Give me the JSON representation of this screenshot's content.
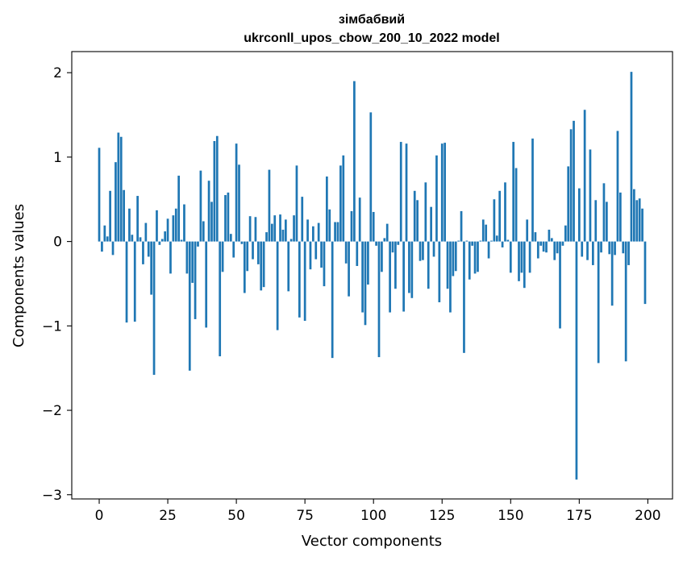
{
  "chart_data": {
    "type": "bar",
    "title": "зімбабвий",
    "subtitle": "ukrconll_upos_cbow_200_10_2022 model",
    "xlabel": "Vector components",
    "ylabel": "Components values",
    "xlim": [
      -10,
      209
    ],
    "ylim": [
      -3.05,
      2.25
    ],
    "xticks": [
      0,
      25,
      50,
      75,
      100,
      125,
      150,
      175,
      200
    ],
    "xtick_labels": [
      "0",
      "25",
      "50",
      "75",
      "100",
      "125",
      "150",
      "175",
      "200"
    ],
    "yticks": [
      -3,
      -2,
      -1,
      0,
      1,
      2
    ],
    "ytick_labels": [
      "−3",
      "−2",
      "−1",
      "0",
      "1",
      "2"
    ],
    "grid": false,
    "legend": "none",
    "bar_color": "#1f77b4",
    "x": [
      0,
      1,
      2,
      3,
      4,
      5,
      6,
      7,
      8,
      9,
      10,
      11,
      12,
      13,
      14,
      15,
      16,
      17,
      18,
      19,
      20,
      21,
      22,
      23,
      24,
      25,
      26,
      27,
      28,
      29,
      30,
      31,
      32,
      33,
      34,
      35,
      36,
      37,
      38,
      39,
      40,
      41,
      42,
      43,
      44,
      45,
      46,
      47,
      48,
      49,
      50,
      51,
      52,
      53,
      54,
      55,
      56,
      57,
      58,
      59,
      60,
      61,
      62,
      63,
      64,
      65,
      66,
      67,
      68,
      69,
      70,
      71,
      72,
      73,
      74,
      75,
      76,
      77,
      78,
      79,
      80,
      81,
      82,
      83,
      84,
      85,
      86,
      87,
      88,
      89,
      90,
      91,
      92,
      93,
      94,
      95,
      96,
      97,
      98,
      99,
      100,
      101,
      102,
      103,
      104,
      105,
      106,
      107,
      108,
      109,
      110,
      111,
      112,
      113,
      114,
      115,
      116,
      117,
      118,
      119,
      120,
      121,
      122,
      123,
      124,
      125,
      126,
      127,
      128,
      129,
      130,
      131,
      132,
      133,
      134,
      135,
      136,
      137,
      138,
      139,
      140,
      141,
      142,
      143,
      144,
      145,
      146,
      147,
      148,
      149,
      150,
      151,
      152,
      153,
      154,
      155,
      156,
      157,
      158,
      159,
      160,
      161,
      162,
      163,
      164,
      165,
      166,
      167,
      168,
      169,
      170,
      171,
      172,
      173,
      174,
      175,
      176,
      177,
      178,
      179,
      180,
      181,
      182,
      183,
      184,
      185,
      186,
      187,
      188,
      189,
      190,
      191,
      192,
      193,
      194,
      195,
      196,
      197,
      198,
      199
    ],
    "values": [
      1.11,
      -0.12,
      0.19,
      0.06,
      0.6,
      -0.16,
      0.94,
      1.29,
      1.24,
      0.61,
      -0.96,
      0.39,
      0.08,
      -0.95,
      0.54,
      0.05,
      -0.27,
      0.22,
      -0.18,
      -0.63,
      -1.58,
      0.37,
      -0.04,
      0.03,
      0.12,
      0.27,
      -0.38,
      0.31,
      0.39,
      0.78,
      0.02,
      0.44,
      -0.38,
      -1.53,
      -0.49,
      -0.92,
      -0.06,
      0.84,
      0.24,
      -1.02,
      0.72,
      0.47,
      1.19,
      1.25,
      -1.36,
      -0.36,
      0.55,
      0.58,
      0.09,
      -0.19,
      1.16,
      0.91,
      -0.03,
      -0.61,
      -0.35,
      0.3,
      -0.21,
      0.29,
      -0.27,
      -0.58,
      -0.54,
      0.11,
      0.85,
      0.21,
      0.31,
      -1.05,
      0.32,
      0.14,
      0.26,
      -0.59,
      0.03,
      0.31,
      0.9,
      -0.9,
      0.53,
      -0.94,
      0.26,
      -0.33,
      0.18,
      -0.21,
      0.22,
      -0.31,
      -0.53,
      0.77,
      0.38,
      -1.38,
      0.23,
      0.23,
      0.9,
      1.02,
      -0.26,
      -0.65,
      0.36,
      1.9,
      -0.29,
      0.52,
      -0.84,
      -0.99,
      -0.51,
      1.53,
      0.35,
      -0.05,
      -1.37,
      -0.36,
      0.04,
      0.21,
      -0.84,
      -0.13,
      -0.56,
      -0.04,
      1.18,
      -0.83,
      1.16,
      -0.61,
      -0.67,
      0.6,
      0.49,
      -0.23,
      -0.22,
      0.7,
      -0.56,
      0.41,
      -0.18,
      1.02,
      -0.72,
      1.16,
      1.17,
      -0.56,
      -0.84,
      -0.41,
      -0.35,
      0.01,
      0.36,
      -1.32,
      0.01,
      -0.45,
      -0.05,
      -0.38,
      -0.36,
      0.01,
      0.26,
      0.2,
      -0.2,
      0.01,
      0.5,
      0.07,
      0.6,
      -0.07,
      0.7,
      0.02,
      -0.37,
      1.18,
      0.87,
      -0.47,
      -0.37,
      -0.55,
      0.26,
      -0.37,
      1.22,
      0.11,
      -0.2,
      -0.05,
      -0.12,
      -0.13,
      0.14,
      0.04,
      -0.22,
      -0.14,
      -1.03,
      -0.05,
      0.19,
      0.89,
      1.33,
      1.43,
      -2.82,
      0.63,
      -0.18,
      1.56,
      -0.22,
      1.09,
      -0.28,
      0.49,
      -1.44,
      -0.13,
      0.69,
      0.47,
      -0.15,
      -0.76,
      -0.16,
      1.31,
      0.58,
      -0.14,
      -1.42,
      -0.28,
      2.01,
      0.62,
      0.49,
      0.51,
      0.39,
      -0.74
    ],
    "values_note_removed": true
  }
}
